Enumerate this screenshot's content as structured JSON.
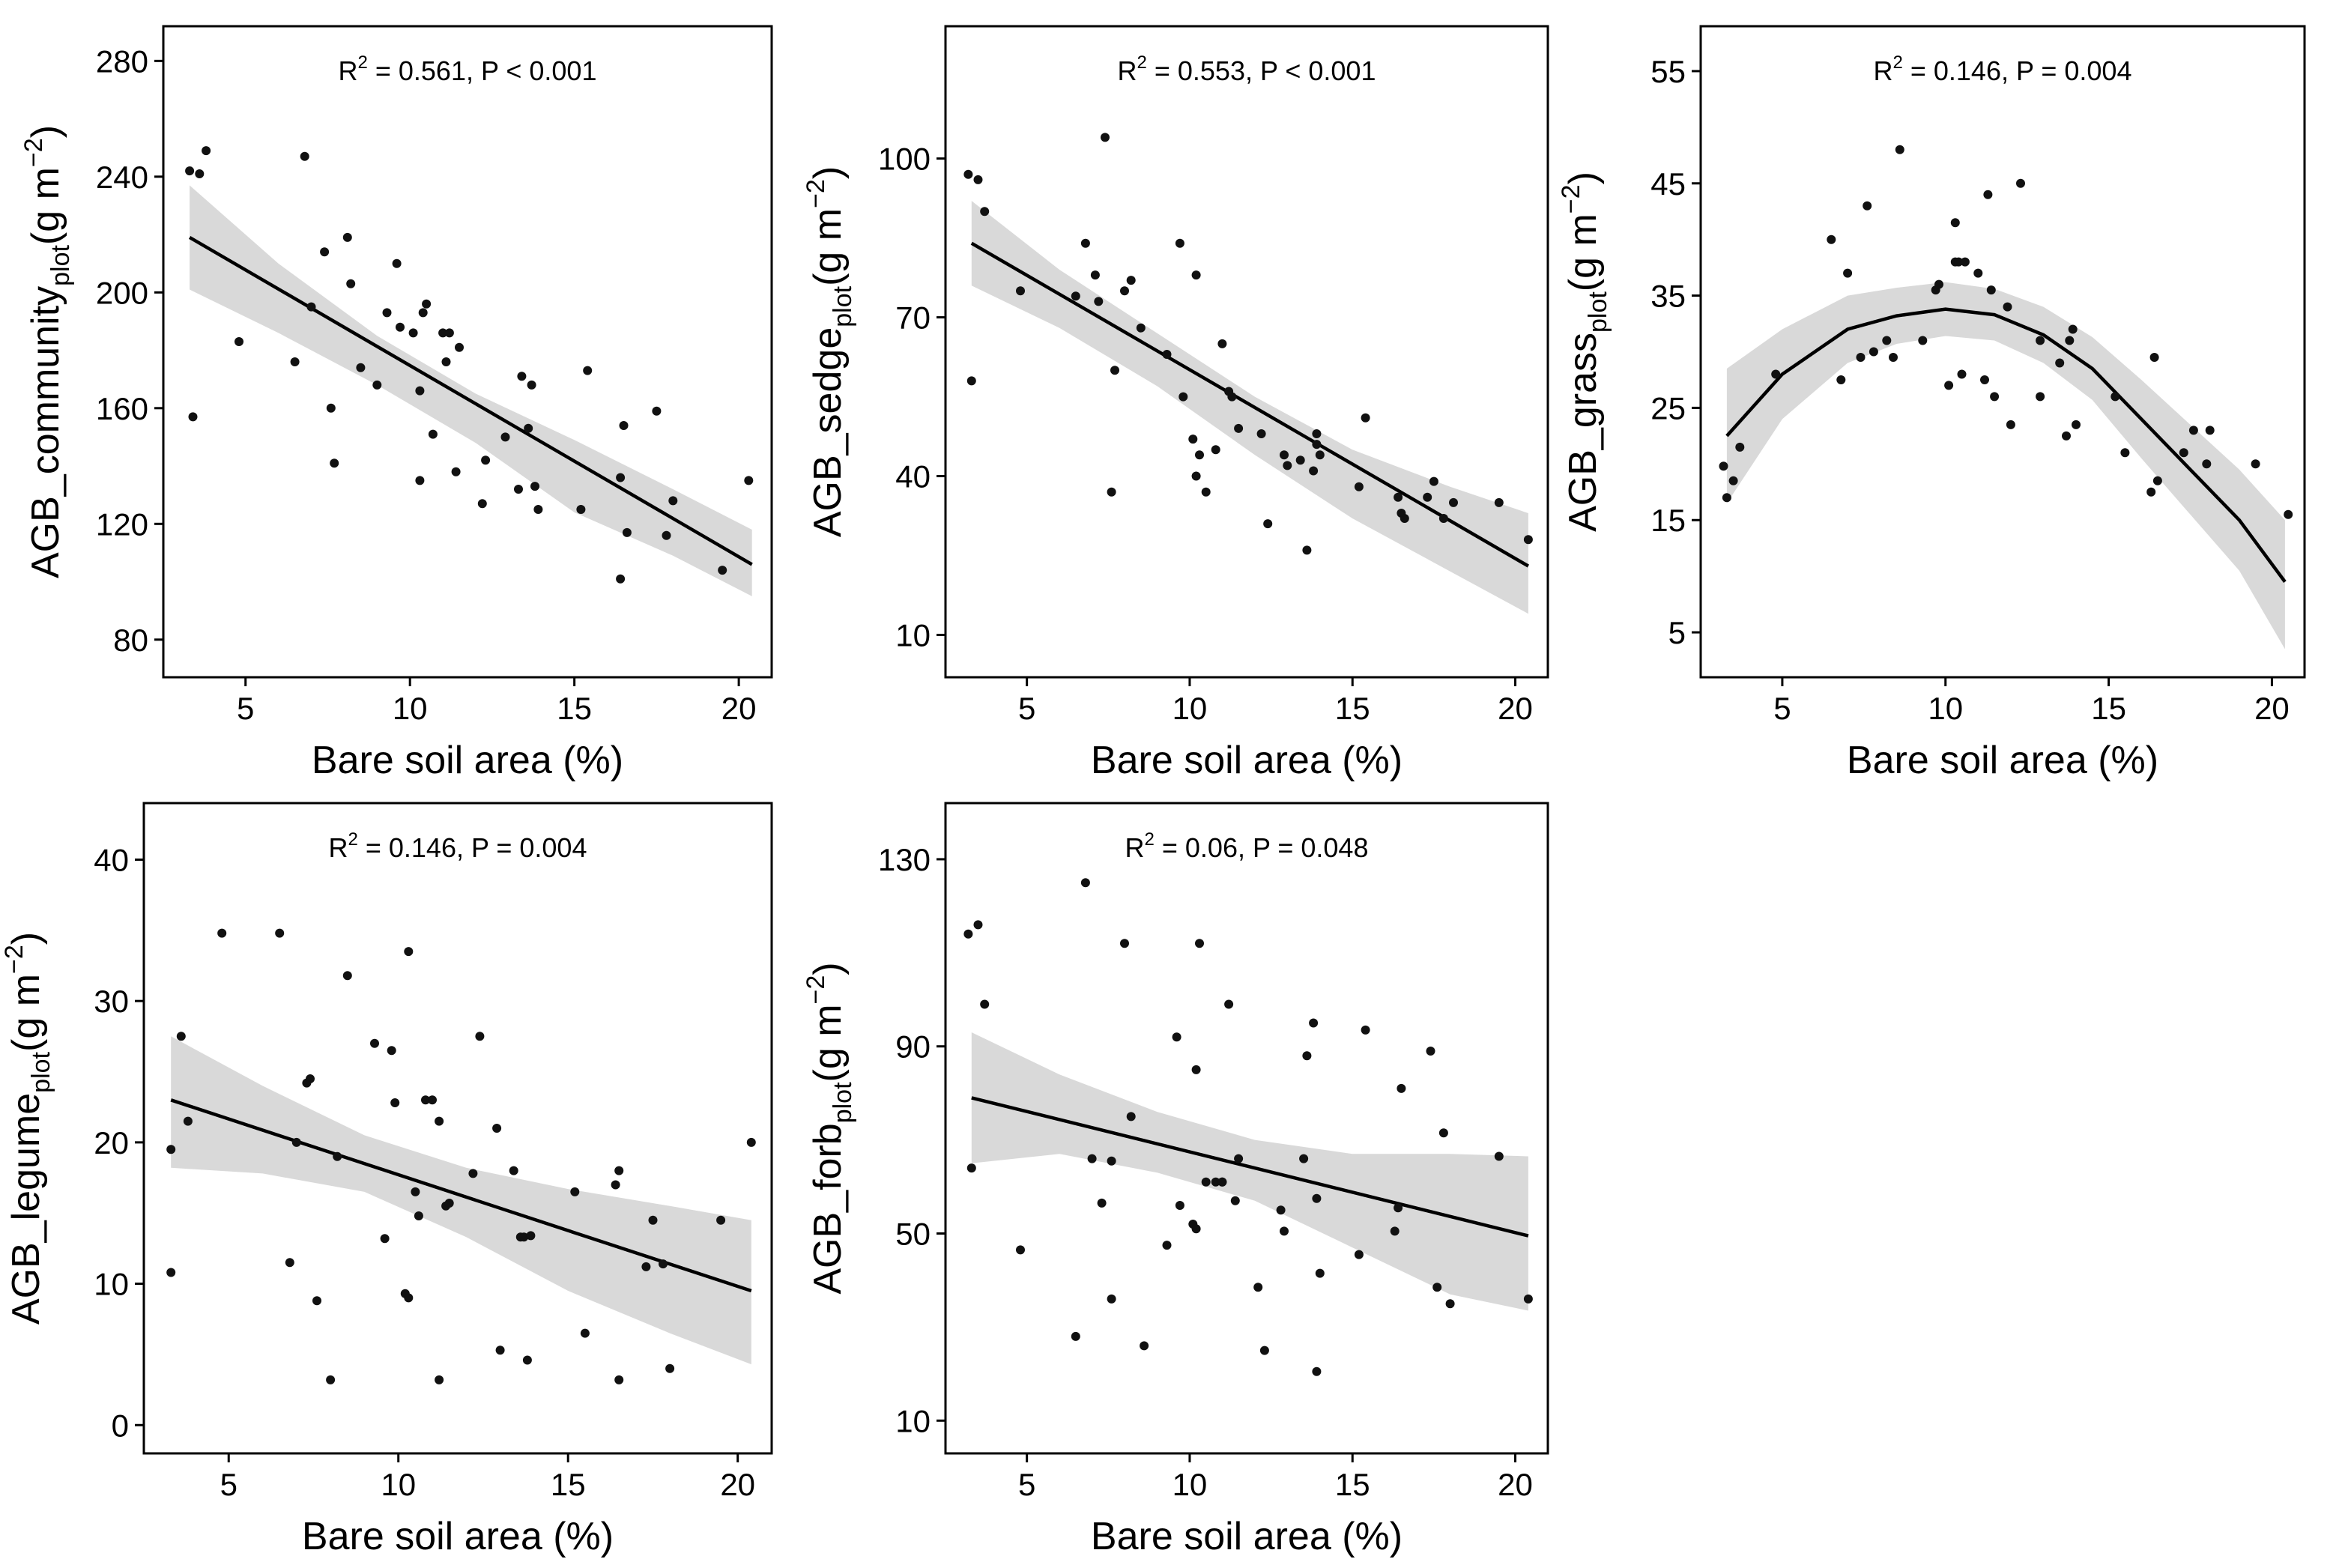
{
  "chart_data": [
    {
      "type": "scatter",
      "id": "community",
      "fit": "linear",
      "stat": {
        "r2_text": "0.561",
        "p_text": "P < 0.001"
      },
      "xlabel": "Bare soil area (%)",
      "ylabel": {
        "base": "AGB_community",
        "sub": "plot",
        "unit": "(g m",
        "sup": "−2",
        "close": ")"
      },
      "xlim": [
        2.5,
        21
      ],
      "ylim": [
        67,
        292
      ],
      "xticks": [
        5,
        10,
        15,
        20
      ],
      "yticks": [
        80,
        120,
        160,
        200,
        240,
        280
      ],
      "fit_line": {
        "x": [
          3.3,
          20.4
        ],
        "y": [
          219,
          106
        ]
      },
      "band_upper": {
        "x": [
          3.3,
          6,
          9,
          12,
          15,
          18,
          20.4
        ],
        "y": [
          237,
          210,
          185,
          165,
          149,
          132,
          118
        ]
      },
      "band_lower": {
        "x": [
          3.3,
          6,
          9,
          12,
          15,
          18,
          20.4
        ],
        "y": [
          201,
          186,
          168,
          148,
          124,
          109,
          95
        ]
      },
      "points": {
        "x": [
          3.3,
          3.6,
          3.8,
          3.4,
          6.8,
          4.8,
          6.5,
          7.0,
          7.4,
          7.6,
          7.7,
          8.1,
          8.2,
          8.5,
          9.0,
          9.3,
          9.6,
          9.7,
          10.1,
          10.3,
          10.3,
          10.4,
          10.5,
          10.7,
          11.0,
          11.1,
          11.2,
          11.4,
          11.5,
          12.2,
          12.3,
          12.9,
          13.3,
          13.4,
          13.6,
          13.7,
          13.8,
          13.9,
          15.2,
          15.4,
          16.4,
          16.5,
          16.6,
          17.5,
          17.8,
          18.0,
          19.5,
          20.3,
          16.4
        ],
        "y": [
          242,
          241,
          249,
          157,
          247,
          183,
          176,
          195,
          214,
          160,
          141,
          219,
          203,
          174,
          168,
          193,
          210,
          188,
          186,
          135,
          166,
          193,
          196,
          151,
          186,
          176,
          186,
          138,
          181,
          127,
          142,
          150,
          132,
          171,
          153,
          168,
          133,
          125,
          125,
          173,
          136,
          154,
          117,
          159,
          116,
          128,
          104,
          135,
          101
        ]
      }
    },
    {
      "type": "scatter",
      "id": "sedge",
      "fit": "linear",
      "stat": {
        "r2_text": "0.553",
        "p_text": "P < 0.001"
      },
      "xlabel": "Bare soil area (%)",
      "ylabel": {
        "base": "AGB_sedge",
        "sub": "plot",
        "unit": "(g m",
        "sup": "−2",
        "close": ")"
      },
      "xlim": [
        2.5,
        21
      ],
      "ylim": [
        2,
        125
      ],
      "xticks": [
        5,
        10,
        15,
        20
      ],
      "yticks": [
        10,
        40,
        70,
        100
      ],
      "fit_line": {
        "x": [
          3.3,
          20.4
        ],
        "y": [
          84,
          23
        ]
      },
      "band_upper": {
        "x": [
          3.3,
          6,
          9,
          12,
          15,
          18,
          20.4
        ],
        "y": [
          92,
          79,
          67,
          55,
          45,
          38,
          33
        ]
      },
      "band_lower": {
        "x": [
          3.3,
          6,
          9,
          12,
          15,
          18,
          20.4
        ],
        "y": [
          76,
          68,
          57,
          44,
          32,
          22,
          14
        ]
      },
      "points": {
        "x": [
          3.2,
          3.5,
          3.7,
          3.3,
          4.8,
          6.5,
          6.8,
          7.2,
          7.4,
          7.7,
          7.6,
          8.0,
          8.2,
          8.5,
          9.3,
          9.7,
          9.8,
          10.1,
          10.2,
          10.2,
          10.3,
          10.5,
          10.8,
          11.0,
          11.2,
          11.5,
          12.2,
          12.4,
          12.9,
          13.0,
          13.4,
          13.6,
          13.8,
          13.9,
          14.0,
          15.2,
          15.4,
          16.4,
          16.5,
          16.6,
          17.3,
          17.5,
          17.8,
          18.1,
          19.5,
          20.4,
          11.3,
          13.9,
          7.1
        ],
        "y": [
          97,
          96,
          90,
          58,
          75,
          74,
          84,
          73,
          104,
          60,
          37,
          75,
          77,
          68,
          63,
          84,
          55,
          47,
          40,
          78,
          44,
          37,
          45,
          65,
          56,
          49,
          48,
          31,
          44,
          42,
          43,
          26,
          41,
          48,
          44,
          38,
          51,
          36,
          33,
          32,
          36,
          39,
          32,
          35,
          35,
          28,
          55,
          46,
          78
        ]
      }
    },
    {
      "type": "scatter",
      "id": "grass",
      "fit": "quadratic",
      "stat": {
        "r2_text": "0.146",
        "p_text": "P = 0.004"
      },
      "xlabel": "Bare soil area (%)",
      "ylabel": {
        "base": "AGB_grass",
        "sub": "plot",
        "unit": "(g m",
        "sup": "−2",
        "close": ")"
      },
      "xlim": [
        2.5,
        21
      ],
      "ylim": [
        1,
        59
      ],
      "xticks": [
        5,
        10,
        15,
        20
      ],
      "yticks": [
        5,
        15,
        25,
        35,
        45,
        55
      ],
      "fit_line": {
        "x": [
          3.3,
          5,
          7,
          8.5,
          10,
          11.5,
          13,
          14.5,
          16,
          17.5,
          19,
          20.4
        ],
        "y": [
          22.5,
          28,
          32,
          33.2,
          33.8,
          33.3,
          31.5,
          28.5,
          24,
          19.5,
          15,
          9.5
        ]
      },
      "band_upper": {
        "x": [
          3.3,
          5,
          7,
          8.5,
          10,
          11.5,
          13,
          14.5,
          16,
          17.5,
          19,
          20.4
        ],
        "y": [
          28.5,
          32,
          35,
          35.7,
          36.2,
          35.6,
          34,
          31.3,
          27.5,
          23.5,
          19.5,
          15
        ]
      },
      "band_lower": {
        "x": [
          3.3,
          5,
          7,
          8.5,
          10,
          11.5,
          13,
          14.5,
          16,
          17.5,
          19,
          20.4
        ],
        "y": [
          16.5,
          24,
          29,
          30.7,
          31.4,
          31,
          29,
          25.7,
          20.5,
          15.5,
          10.5,
          3.5
        ]
      },
      "points": {
        "x": [
          3.2,
          3.3,
          3.5,
          3.7,
          4.8,
          6.5,
          6.8,
          7.0,
          7.4,
          7.6,
          7.8,
          8.2,
          8.4,
          8.6,
          9.3,
          9.7,
          9.8,
          10.1,
          10.3,
          10.3,
          10.4,
          10.5,
          10.6,
          11.0,
          11.2,
          11.3,
          11.4,
          11.5,
          12.0,
          12.3,
          12.9,
          12.9,
          13.5,
          13.7,
          13.8,
          13.9,
          14.0,
          15.2,
          15.5,
          16.3,
          16.4,
          16.5,
          17.3,
          17.6,
          18.0,
          18.1,
          19.5,
          20.5,
          11.9
        ],
        "y": [
          19.8,
          17.0,
          18.5,
          21.5,
          28,
          40,
          27.5,
          37,
          29.5,
          43,
          30,
          31,
          29.5,
          48,
          31,
          35.5,
          36,
          27,
          38,
          41.5,
          38,
          28,
          38,
          37,
          27.5,
          44,
          35.5,
          26,
          23.5,
          45,
          31,
          26,
          29,
          22.5,
          31,
          32,
          23.5,
          26,
          21,
          17.5,
          29.5,
          18.5,
          21,
          23,
          20,
          23,
          20,
          15.5,
          34
        ]
      }
    },
    {
      "type": "scatter",
      "id": "legume",
      "fit": "linear",
      "stat": {
        "r2_text": "0.146",
        "p_text": "P = 0.004"
      },
      "xlabel": "Bare soil area (%)",
      "ylabel": {
        "base": "AGB_legume",
        "sub": "plot",
        "unit": "(g m",
        "sup": "−2",
        "close": ")"
      },
      "xlim": [
        2.5,
        21
      ],
      "ylim": [
        -2,
        44
      ],
      "xticks": [
        5,
        10,
        15,
        20
      ],
      "yticks": [
        0,
        10,
        20,
        30,
        40
      ],
      "fit_line": {
        "x": [
          3.3,
          20.4
        ],
        "y": [
          23,
          9.5
        ]
      },
      "band_upper": {
        "x": [
          3.3,
          6,
          9,
          12,
          15,
          18,
          20.4
        ],
        "y": [
          27.5,
          24,
          20.5,
          18.2,
          16.7,
          15.5,
          14.5
        ]
      },
      "band_lower": {
        "x": [
          3.3,
          6,
          9,
          12,
          15,
          18,
          20.4
        ],
        "y": [
          18.2,
          17.8,
          16.5,
          13.3,
          9.5,
          6.5,
          4.3
        ]
      },
      "points": {
        "x": [
          3.3,
          3.6,
          3.8,
          3.3,
          4.8,
          6.5,
          6.8,
          7.0,
          7.3,
          7.4,
          7.6,
          8.0,
          8.2,
          8.5,
          9.3,
          9.6,
          9.8,
          9.9,
          10.2,
          10.3,
          10.3,
          10.5,
          10.6,
          10.8,
          11.0,
          11.2,
          11.4,
          11.5,
          12.2,
          12.4,
          12.9,
          13.0,
          13.4,
          13.6,
          13.7,
          13.8,
          13.9,
          15.2,
          15.5,
          16.4,
          16.5,
          16.5,
          17.3,
          17.5,
          17.8,
          18.0,
          19.5,
          20.4,
          11.2
        ],
        "y": [
          19.5,
          27.5,
          21.5,
          10.8,
          34.8,
          34.8,
          11.5,
          20,
          24.2,
          24.5,
          8.8,
          3.2,
          19,
          31.8,
          27,
          13.2,
          26.5,
          22.8,
          9.3,
          33.5,
          9,
          16.5,
          14.8,
          23,
          23,
          21.5,
          15.5,
          15.7,
          17.8,
          27.5,
          21,
          5.3,
          18,
          13.3,
          13.3,
          4.6,
          13.4,
          16.5,
          6.5,
          17,
          18,
          3.2,
          11.2,
          14.5,
          11.4,
          4,
          14.5,
          20,
          3.2
        ]
      }
    },
    {
      "type": "scatter",
      "id": "forb",
      "fit": "linear",
      "stat": {
        "r2_text": "0.06",
        "p_text": "P = 0.048"
      },
      "xlabel": "Bare soil area (%)",
      "ylabel": {
        "base": "AGB_forb",
        "sub": "plot",
        "unit": "(g m",
        "sup": "−2",
        "close": ")"
      },
      "xlim": [
        2.5,
        21
      ],
      "ylim": [
        3,
        142
      ],
      "xticks": [
        5,
        10,
        15,
        20
      ],
      "yticks": [
        10,
        50,
        90,
        130
      ],
      "fit_line": {
        "x": [
          3.3,
          20.4
        ],
        "y": [
          79,
          49.5
        ]
      },
      "band_upper": {
        "x": [
          3.3,
          6,
          9,
          12,
          15,
          18,
          20.4
        ],
        "y": [
          93,
          84,
          76,
          70,
          67,
          67,
          66.5
        ]
      },
      "band_lower": {
        "x": [
          3.3,
          6,
          9,
          12,
          15,
          18,
          20.4
        ],
        "y": [
          65,
          67,
          63,
          57,
          47,
          37,
          33.5
        ]
      },
      "points": {
        "x": [
          3.2,
          3.5,
          3.7,
          3.3,
          4.8,
          6.5,
          6.8,
          7.0,
          7.3,
          7.6,
          7.6,
          8.0,
          8.2,
          8.6,
          9.3,
          9.6,
          9.7,
          10.1,
          10.2,
          10.3,
          10.5,
          10.8,
          11.0,
          11.2,
          11.4,
          11.5,
          12.1,
          12.3,
          12.8,
          12.9,
          13.5,
          13.6,
          13.8,
          13.9,
          14.0,
          15.2,
          15.4,
          16.3,
          16.4,
          16.5,
          17.4,
          17.6,
          17.8,
          18.0,
          19.5,
          20.4,
          10.2,
          11.0,
          13.9
        ],
        "y": [
          114,
          116,
          99,
          64,
          46.5,
          28,
          125,
          66,
          56.5,
          36,
          65.5,
          112,
          75,
          26,
          47.5,
          92,
          56,
          52,
          85,
          112,
          61,
          61,
          61,
          99,
          57,
          66,
          38.5,
          25,
          55,
          50.5,
          66,
          88,
          95,
          57.5,
          41.5,
          45.5,
          93.5,
          50.5,
          55.5,
          81,
          89,
          38.5,
          71.5,
          35,
          66.5,
          36,
          51,
          61,
          20.5
        ]
      }
    }
  ]
}
